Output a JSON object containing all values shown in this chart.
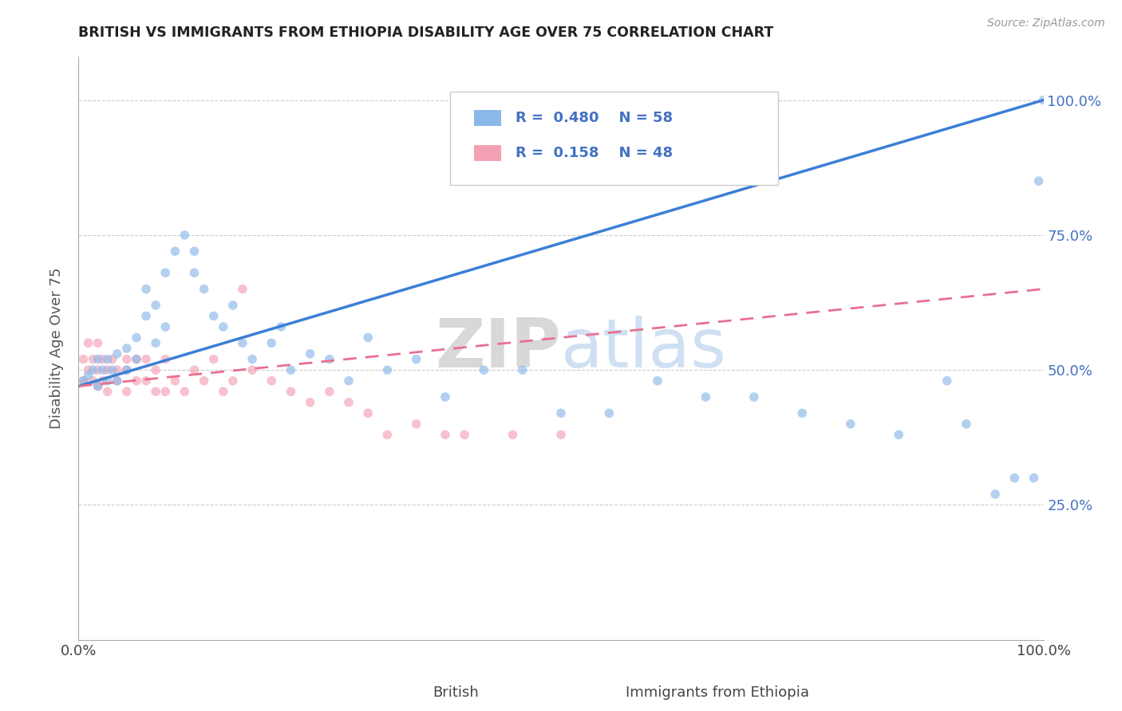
{
  "title": "BRITISH VS IMMIGRANTS FROM ETHIOPIA DISABILITY AGE OVER 75 CORRELATION CHART",
  "source": "Source: ZipAtlas.com",
  "ylabel": "Disability Age Over 75",
  "british_color": "#8ab8e8",
  "ethiopia_color": "#f4a0b5",
  "british_line_color": "#3a7fd5",
  "ethiopia_line_color": "#e87090",
  "british_scatter": {
    "x": [
      0.005,
      0.01,
      0.015,
      0.02,
      0.02,
      0.025,
      0.03,
      0.03,
      0.035,
      0.04,
      0.04,
      0.05,
      0.05,
      0.06,
      0.06,
      0.07,
      0.07,
      0.08,
      0.08,
      0.09,
      0.09,
      0.1,
      0.11,
      0.12,
      0.12,
      0.13,
      0.14,
      0.15,
      0.16,
      0.17,
      0.18,
      0.2,
      0.21,
      0.22,
      0.24,
      0.26,
      0.28,
      0.3,
      0.32,
      0.35,
      0.38,
      0.42,
      0.46,
      0.5,
      0.55,
      0.6,
      0.65,
      0.7,
      0.75,
      0.8,
      0.85,
      0.9,
      0.92,
      0.95,
      0.97,
      0.99,
      0.995,
      1.0
    ],
    "y": [
      0.48,
      0.49,
      0.5,
      0.47,
      0.52,
      0.5,
      0.48,
      0.52,
      0.5,
      0.48,
      0.53,
      0.5,
      0.54,
      0.52,
      0.56,
      0.6,
      0.65,
      0.55,
      0.62,
      0.58,
      0.68,
      0.72,
      0.75,
      0.68,
      0.72,
      0.65,
      0.6,
      0.58,
      0.62,
      0.55,
      0.52,
      0.55,
      0.58,
      0.5,
      0.53,
      0.52,
      0.48,
      0.56,
      0.5,
      0.52,
      0.45,
      0.5,
      0.5,
      0.42,
      0.42,
      0.48,
      0.45,
      0.45,
      0.42,
      0.4,
      0.38,
      0.48,
      0.4,
      0.27,
      0.3,
      0.3,
      0.85,
      1.0
    ]
  },
  "ethiopia_scatter": {
    "x": [
      0.005,
      0.005,
      0.01,
      0.01,
      0.015,
      0.015,
      0.02,
      0.02,
      0.02,
      0.025,
      0.025,
      0.03,
      0.03,
      0.035,
      0.04,
      0.04,
      0.05,
      0.05,
      0.05,
      0.06,
      0.06,
      0.07,
      0.07,
      0.08,
      0.08,
      0.09,
      0.09,
      0.1,
      0.11,
      0.12,
      0.13,
      0.14,
      0.15,
      0.16,
      0.17,
      0.18,
      0.2,
      0.22,
      0.24,
      0.26,
      0.28,
      0.3,
      0.32,
      0.35,
      0.38,
      0.4,
      0.45,
      0.5
    ],
    "y": [
      0.52,
      0.48,
      0.55,
      0.5,
      0.52,
      0.48,
      0.55,
      0.5,
      0.47,
      0.52,
      0.48,
      0.5,
      0.46,
      0.52,
      0.5,
      0.48,
      0.46,
      0.5,
      0.52,
      0.48,
      0.52,
      0.48,
      0.52,
      0.46,
      0.5,
      0.46,
      0.52,
      0.48,
      0.46,
      0.5,
      0.48,
      0.52,
      0.46,
      0.48,
      0.65,
      0.5,
      0.48,
      0.46,
      0.44,
      0.46,
      0.44,
      0.42,
      0.38,
      0.4,
      0.38,
      0.38,
      0.38,
      0.38
    ]
  },
  "british_line": {
    "x0": 0.0,
    "y0": 0.47,
    "x1": 1.0,
    "y1": 1.0
  },
  "ethiopia_line": {
    "x0": 0.0,
    "y0": 0.47,
    "x1": 1.0,
    "y1": 0.65
  },
  "watermark_zip": "ZIP",
  "watermark_atlas": "atlas",
  "background_color": "#ffffff",
  "marker_size": 70,
  "marker_alpha": 0.65,
  "ylim_min": 0.0,
  "ylim_max": 1.08,
  "xlim_min": 0.0,
  "xlim_max": 1.0,
  "yticks": [
    0.25,
    0.5,
    0.75,
    1.0
  ],
  "ytick_labels": [
    "25.0%",
    "50.0%",
    "75.0%",
    "100.0%"
  ],
  "xticks": [
    0.0,
    1.0
  ],
  "xtick_labels": [
    "0.0%",
    "100.0%"
  ]
}
